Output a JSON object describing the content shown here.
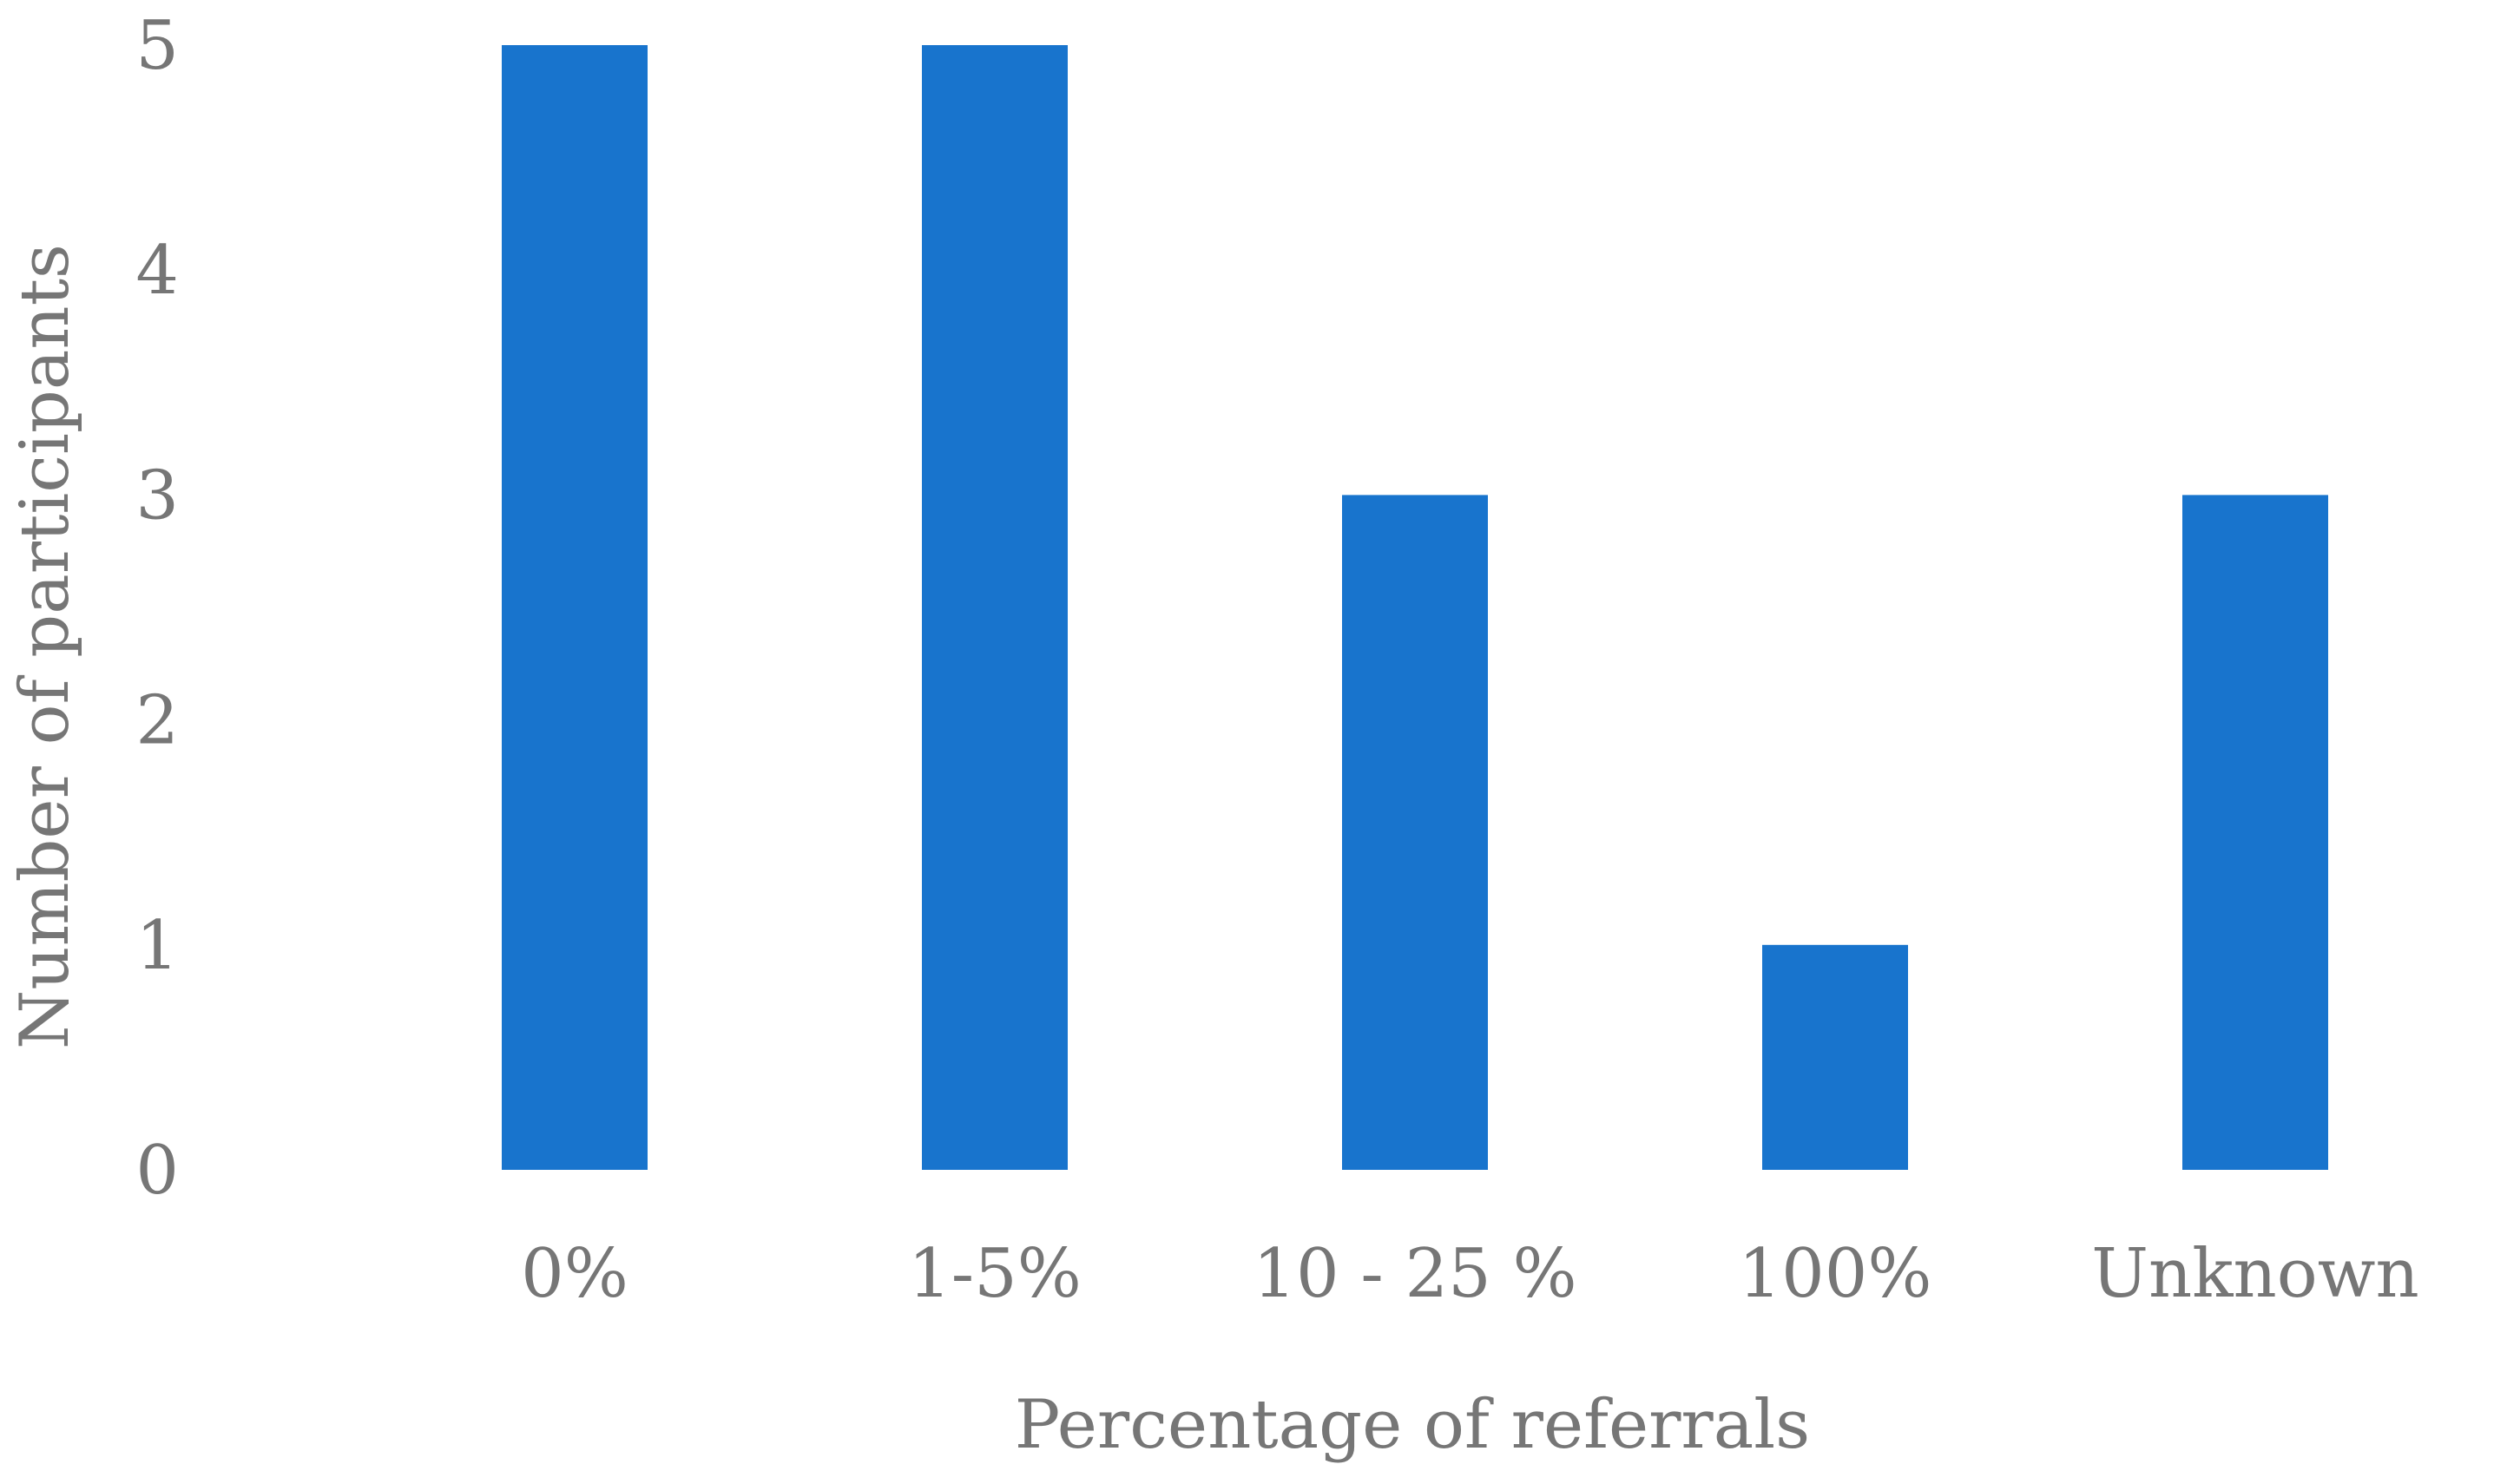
{
  "chart_data": {
    "type": "bar",
    "categories": [
      "0%",
      "1-5%",
      "10 - 25 %",
      "100%",
      "Unknown"
    ],
    "values": [
      5,
      5,
      3,
      1,
      3
    ],
    "xlabel": "Percentage of referrals",
    "ylabel": "Number of participants",
    "ylim": [
      0,
      5
    ],
    "yticks": [
      "0",
      "1",
      "2",
      "3",
      "4",
      "5"
    ],
    "grid": false,
    "legend": "none",
    "bar_color": "#1874CD",
    "text_color": "#767676"
  }
}
